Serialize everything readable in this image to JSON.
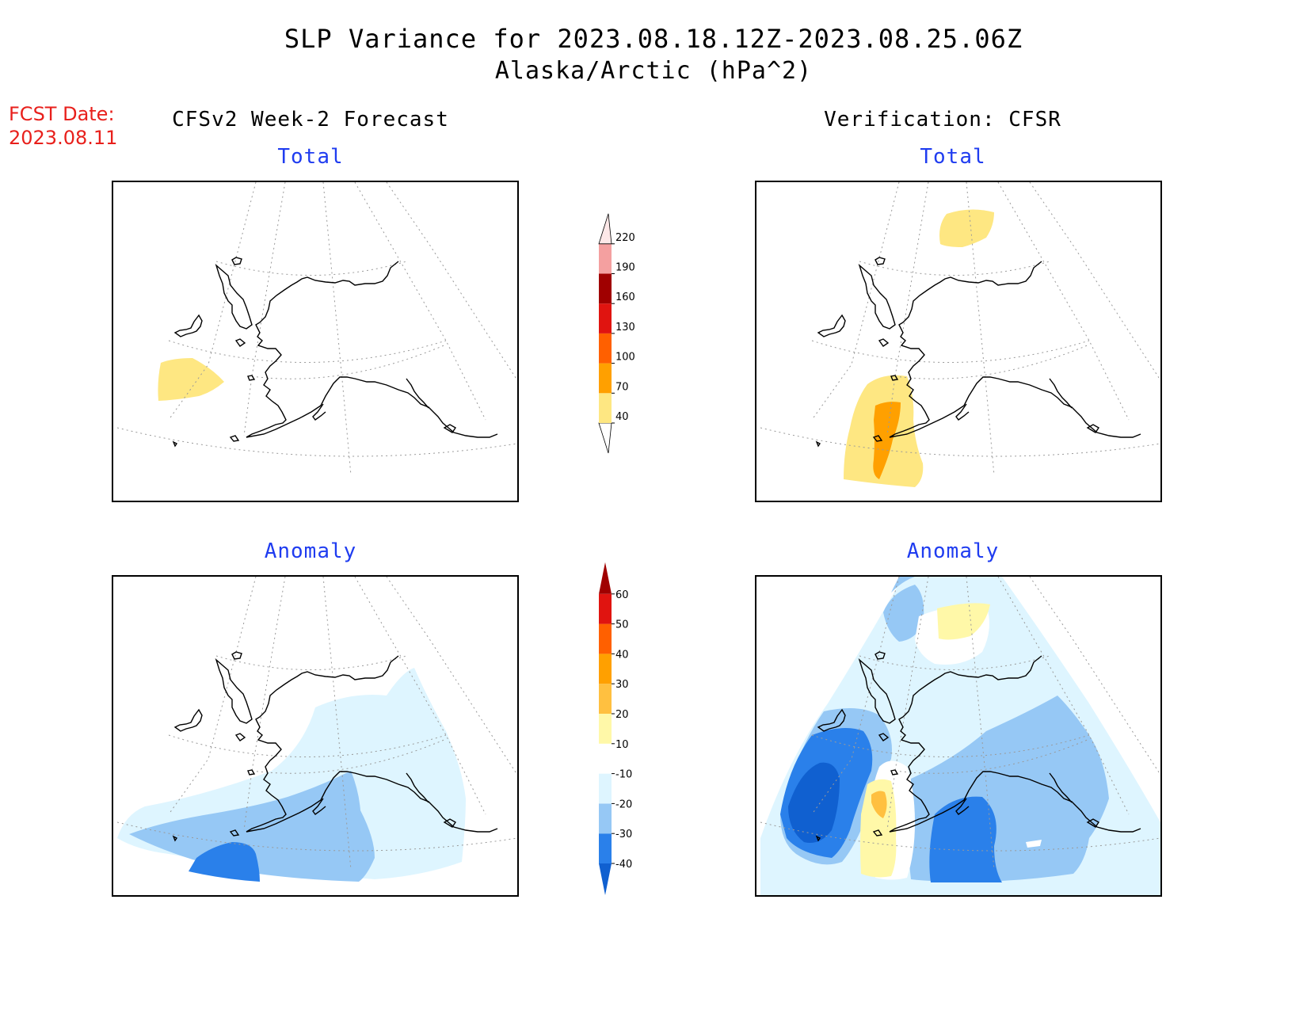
{
  "title": {
    "line1": "SLP Variance for 2023.08.18.12Z-2023.08.25.06Z",
    "line2": "Alaska/Arctic (hPa^2)"
  },
  "forecast_date": {
    "label": "FCST Date:",
    "value": "2023.08.11"
  },
  "columns": {
    "left": "CFSv2 Week-2 Forecast",
    "right": "Verification: CFSR"
  },
  "panels": {
    "forecast_total": {
      "label": "Total"
    },
    "verification_total": {
      "label": "Total"
    },
    "forecast_anomaly": {
      "label": "Anomaly"
    },
    "verification_anomaly": {
      "label": "Anomaly"
    }
  },
  "colorbars": {
    "total": {
      "levels": [
        "40",
        "70",
        "100",
        "130",
        "160",
        "190",
        "220"
      ],
      "colors": [
        "#fee782",
        "#ffa000",
        "#ff6000",
        "#e01410",
        "#a00000",
        "#f4a0a0",
        "#fde8e8"
      ]
    },
    "anomaly": {
      "levels": [
        "-40",
        "-30",
        "-20",
        "-10",
        "10",
        "20",
        "30",
        "40",
        "50",
        "60"
      ],
      "colors": [
        "#1060d0",
        "#2a80ea",
        "#96c8f5",
        "#def5ff",
        "#ffffff",
        "#fff8a8",
        "#ffc040",
        "#ffa000",
        "#ff6000",
        "#e01410",
        "#a00000"
      ]
    }
  }
}
